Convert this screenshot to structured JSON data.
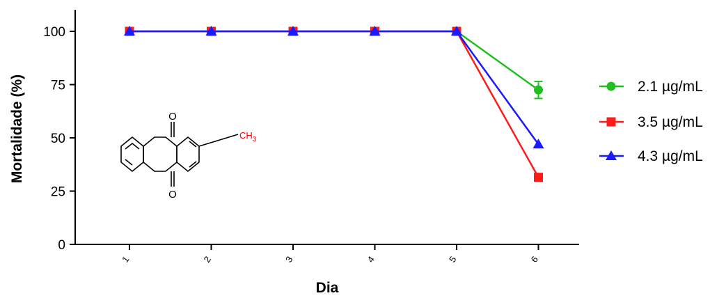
{
  "chart_data": {
    "type": "line",
    "xlabel": "Dia",
    "ylabel": "Mortalidade (%)",
    "categories": [
      "1",
      "2",
      "3",
      "4",
      "5",
      "6"
    ],
    "ylim": [
      0,
      110
    ],
    "yticks": [
      "0",
      "25",
      "50",
      "75",
      "100"
    ],
    "legend_position": "right",
    "series": [
      {
        "name": "2.1 µg/mL",
        "color": "#1fbf1f",
        "marker": "circle",
        "values": [
          100,
          100,
          100,
          100,
          100,
          72.5
        ],
        "error": [
          0,
          0,
          0,
          0,
          0,
          4
        ]
      },
      {
        "name": "3.5 µg/mL",
        "color": "#ff1a1a",
        "marker": "square",
        "values": [
          100,
          100,
          100,
          100,
          100,
          31.5
        ],
        "error": [
          0,
          0,
          0,
          0,
          0,
          0
        ]
      },
      {
        "name": "4.3 µg/mL",
        "color": "#1a1aff",
        "marker": "triangle",
        "values": [
          100,
          100,
          100,
          100,
          100,
          47
        ],
        "error": [
          0,
          0,
          0,
          0,
          0,
          0
        ]
      }
    ]
  },
  "structure": {
    "oxygen_top": "O",
    "oxygen_bottom": "O",
    "substituent": "CH3",
    "substituent_color": "#ff0000"
  }
}
